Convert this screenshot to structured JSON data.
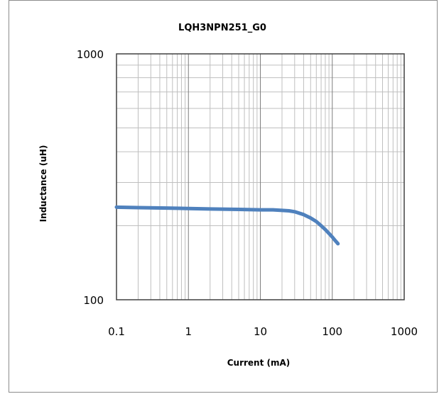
{
  "chart_data": {
    "type": "line",
    "title": "LQH3NPN251_G0",
    "xlabel": "Current (mA)",
    "ylabel": "Inductance (uH)",
    "x_scale": "log",
    "y_scale": "log",
    "xlim": [
      0.1,
      1000
    ],
    "ylim": [
      100,
      1000
    ],
    "x_ticks": [
      "0.1",
      "1",
      "10",
      "100",
      "1000"
    ],
    "y_ticks": [
      "100",
      "1000"
    ],
    "grid": true,
    "legend": "none",
    "series": [
      {
        "color": "#4f81bd",
        "x": [
          0.1,
          0.2,
          0.5,
          1,
          2,
          5,
          10,
          15,
          20,
          25,
          30,
          40,
          50,
          60,
          70,
          80,
          90,
          100,
          110,
          120
        ],
        "y": [
          238,
          237,
          236,
          235,
          234,
          233,
          232,
          232,
          231,
          230,
          228,
          222,
          215,
          208,
          200,
          193,
          186,
          180,
          174,
          169
        ]
      }
    ]
  }
}
